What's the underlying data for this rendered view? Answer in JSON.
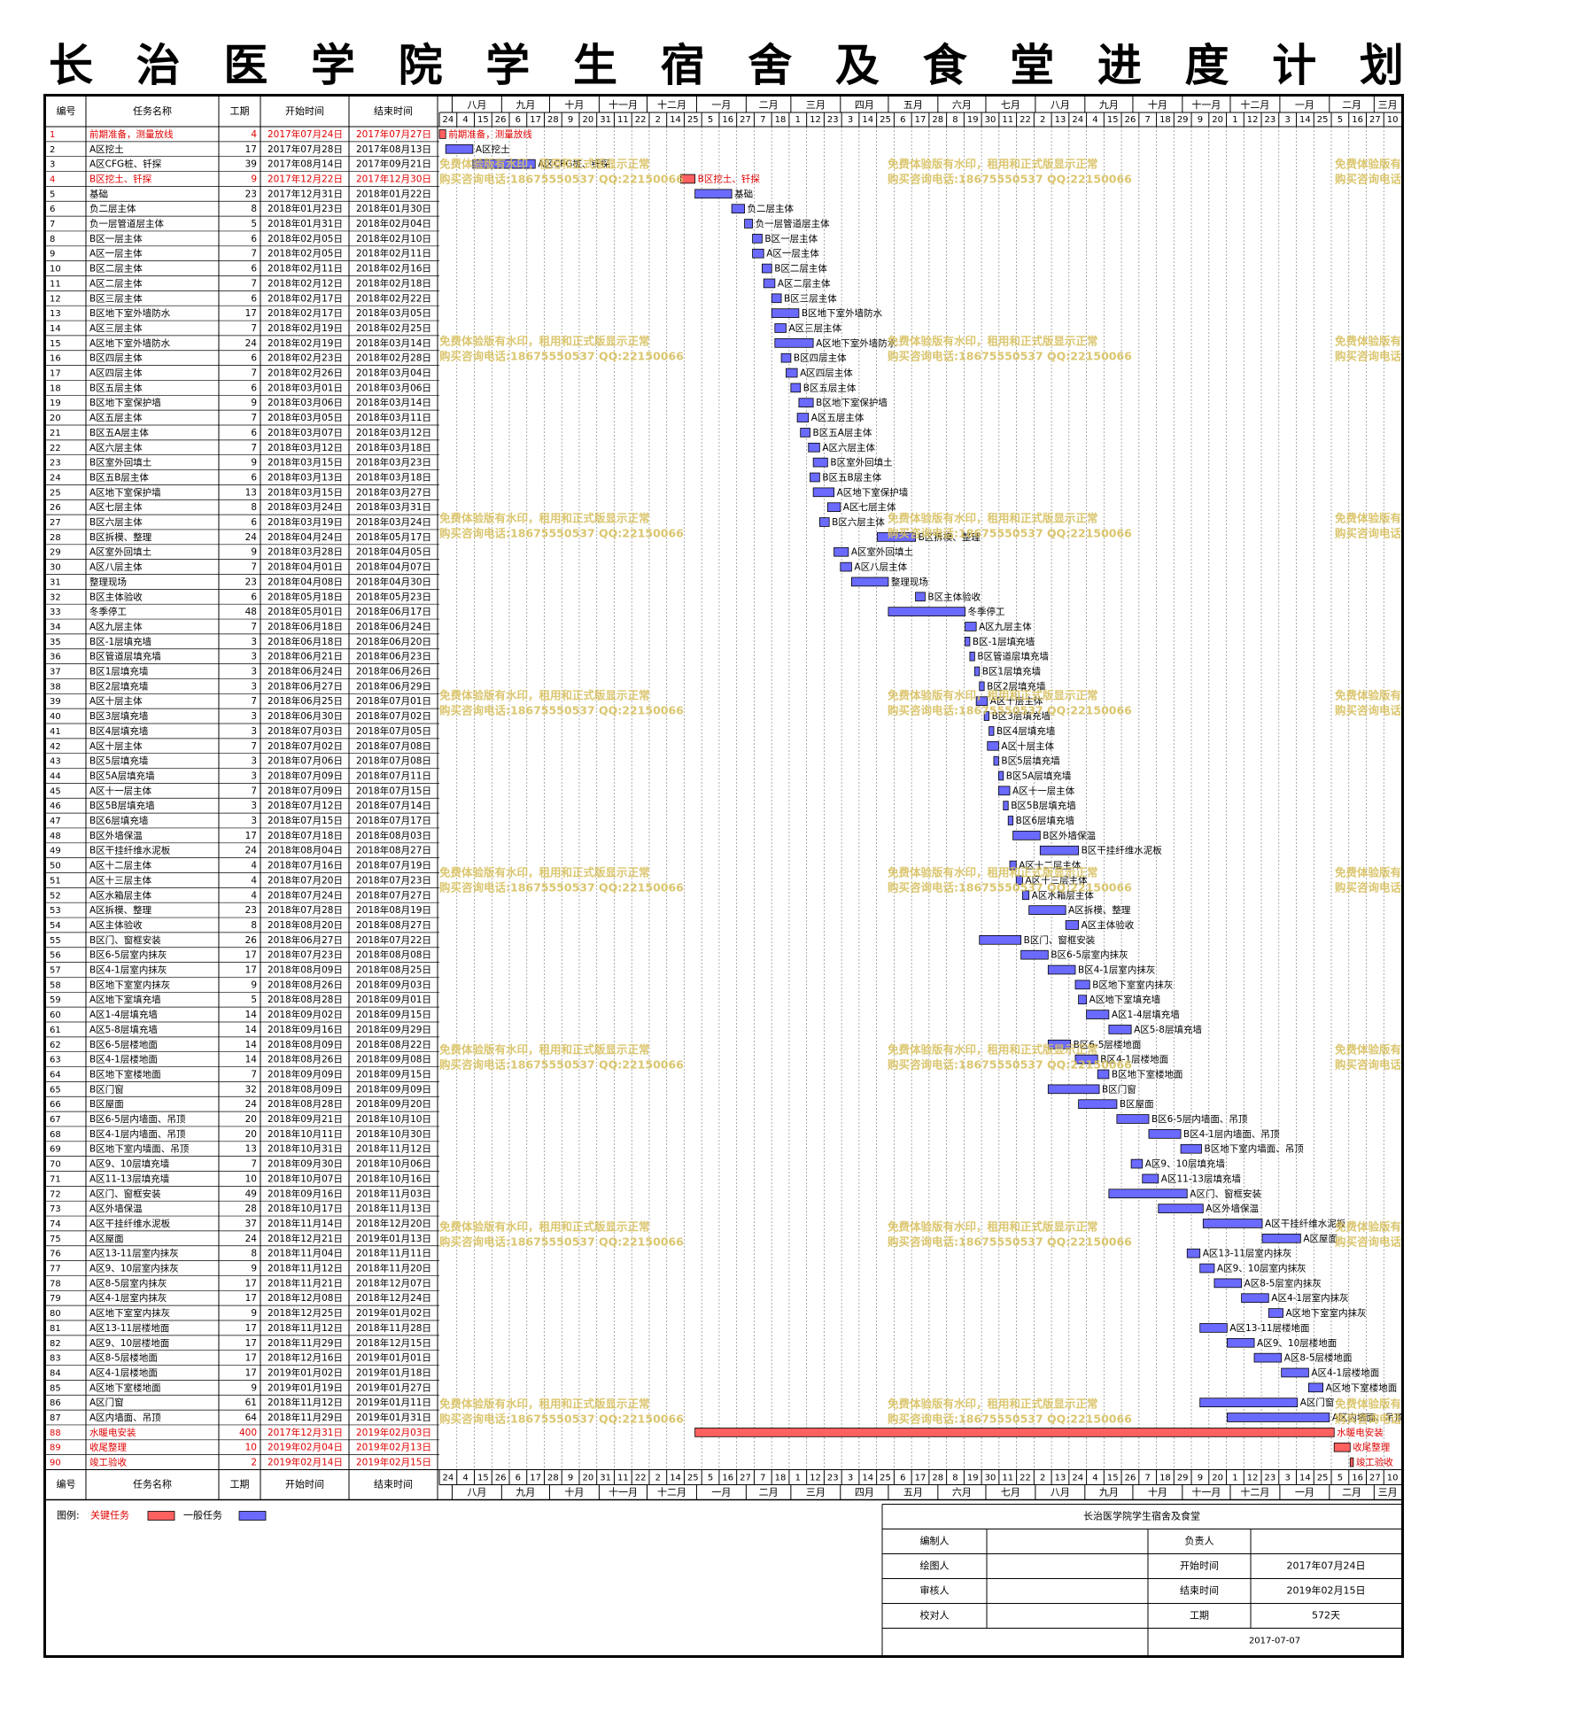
{
  "title": "长治医学院学生宿舍及食堂进度计划",
  "colors": {
    "critical": "#ff6060",
    "critical_text": "#e00000",
    "normal": "#6a6aff",
    "normal_text": "#000000",
    "watermark": "#d8c060"
  },
  "headers": {
    "id": "编号",
    "name": "任务名称",
    "duration": "工期",
    "start": "开始时间",
    "end": "结束时间"
  },
  "legend": {
    "label": "图例:",
    "critical": "关键任务",
    "normal": "一般任务"
  },
  "watermark": {
    "line1": "免费体验版有水印，租用和正式版显示正常",
    "line2": "购买咨询电话:18675550537 QQ:22150066"
  },
  "info": {
    "project": "长治医学院学生宿舍及食堂",
    "rows": [
      [
        "编制人",
        "",
        "负责人",
        ""
      ],
      [
        "绘图人",
        "",
        "开始时间",
        "2017年07月24日"
      ],
      [
        "审核人",
        "",
        "结束时间",
        "2019年02月15日"
      ],
      [
        "校对人",
        "",
        "工期",
        "572天"
      ]
    ],
    "date": "2017-07-07"
  },
  "chart_data": {
    "type": "gantt",
    "timeline": {
      "months": [
        {
          "label": "八月",
          "start": "2017-08-01"
        },
        {
          "label": "九月",
          "start": "2017-09-01"
        },
        {
          "label": "十月",
          "start": "2017-10-01"
        },
        {
          "label": "十一月",
          "start": "2017-11-01"
        },
        {
          "label": "十二月",
          "start": "2017-12-01"
        },
        {
          "label": "一月",
          "start": "2018-01-01"
        },
        {
          "label": "二月",
          "start": "2018-02-01"
        },
        {
          "label": "三月",
          "start": "2018-03-01"
        },
        {
          "label": "四月",
          "start": "2018-04-01"
        },
        {
          "label": "五月",
          "start": "2018-05-01"
        },
        {
          "label": "六月",
          "start": "2018-06-01"
        },
        {
          "label": "七月",
          "start": "2018-07-01"
        },
        {
          "label": "八月",
          "start": "2018-08-01"
        },
        {
          "label": "九月",
          "start": "2018-09-01"
        },
        {
          "label": "十月",
          "start": "2018-10-01"
        },
        {
          "label": "十一月",
          "start": "2018-11-01"
        },
        {
          "label": "十二月",
          "start": "2018-12-01"
        },
        {
          "label": "一月",
          "start": "2019-01-01"
        },
        {
          "label": "二月",
          "start": "2019-02-01"
        },
        {
          "label": "三月",
          "start": "2019-03-01"
        }
      ],
      "ticks": [
        "24",
        "4",
        "15",
        "26",
        "6",
        "17",
        "28",
        "9",
        "20",
        "31",
        "11",
        "22",
        "2",
        "14",
        "25",
        "5",
        "16",
        "27",
        "7",
        "18",
        "1",
        "12",
        "23",
        "3",
        "14",
        "25",
        "6",
        "17",
        "28",
        "8",
        "19",
        "30",
        "11",
        "22",
        "2",
        "13",
        "24",
        "4",
        "15",
        "26",
        "7",
        "18",
        "29",
        "9",
        "20",
        "1",
        "12",
        "23",
        "3",
        "14",
        "25",
        "5",
        "16",
        "27",
        "10"
      ],
      "range": [
        "2017-07-24",
        "2019-03-18"
      ]
    },
    "tasks": [
      {
        "id": "1",
        "name": "前期准备，测量放线",
        "dur": "4",
        "start": "2017年07月24日",
        "end": "2017年07月27日",
        "critical": true
      },
      {
        "id": "2",
        "name": "A区挖土",
        "dur": "17",
        "start": "2017年07月28日",
        "end": "2017年08月13日",
        "critical": false
      },
      {
        "id": "3",
        "name": "A区CFG桩、钎探",
        "dur": "39",
        "start": "2017年08月14日",
        "end": "2017年09月21日",
        "critical": false
      },
      {
        "id": "4",
        "name": "B区挖土、钎探",
        "dur": "9",
        "start": "2017年12月22日",
        "end": "2017年12月30日",
        "critical": true
      },
      {
        "id": "5",
        "name": "基础",
        "dur": "23",
        "start": "2017年12月31日",
        "end": "2018年01月22日",
        "critical": false
      },
      {
        "id": "6",
        "name": "负二层主体",
        "dur": "8",
        "start": "2018年01月23日",
        "end": "2018年01月30日",
        "critical": false
      },
      {
        "id": "7",
        "name": "负一层管道层主体",
        "dur": "5",
        "start": "2018年01月31日",
        "end": "2018年02月04日",
        "critical": false
      },
      {
        "id": "8",
        "name": "B区一层主体",
        "dur": "6",
        "start": "2018年02月05日",
        "end": "2018年02月10日",
        "critical": false
      },
      {
        "id": "9",
        "name": "A区一层主体",
        "dur": "7",
        "start": "2018年02月05日",
        "end": "2018年02月11日",
        "critical": false
      },
      {
        "id": "10",
        "name": "B区二层主体",
        "dur": "6",
        "start": "2018年02月11日",
        "end": "2018年02月16日",
        "critical": false
      },
      {
        "id": "11",
        "name": "A区二层主体",
        "dur": "7",
        "start": "2018年02月12日",
        "end": "2018年02月18日",
        "critical": false
      },
      {
        "id": "12",
        "name": "B区三层主体",
        "dur": "6",
        "start": "2018年02月17日",
        "end": "2018年02月22日",
        "critical": false
      },
      {
        "id": "13",
        "name": "B区地下室外墙防水",
        "dur": "17",
        "start": "2018年02月17日",
        "end": "2018年03月05日",
        "critical": false
      },
      {
        "id": "14",
        "name": "A区三层主体",
        "dur": "7",
        "start": "2018年02月19日",
        "end": "2018年02月25日",
        "critical": false
      },
      {
        "id": "15",
        "name": "A区地下室外墙防水",
        "dur": "24",
        "start": "2018年02月19日",
        "end": "2018年03月14日",
        "critical": false
      },
      {
        "id": "16",
        "name": "B区四层主体",
        "dur": "6",
        "start": "2018年02月23日",
        "end": "2018年02月28日",
        "critical": false
      },
      {
        "id": "17",
        "name": "A区四层主体",
        "dur": "7",
        "start": "2018年02月26日",
        "end": "2018年03月04日",
        "critical": false
      },
      {
        "id": "18",
        "name": "B区五层主体",
        "dur": "6",
        "start": "2018年03月01日",
        "end": "2018年03月06日",
        "critical": false
      },
      {
        "id": "19",
        "name": "B区地下室保护墙",
        "dur": "9",
        "start": "2018年03月06日",
        "end": "2018年03月14日",
        "critical": false
      },
      {
        "id": "20",
        "name": "A区五层主体",
        "dur": "7",
        "start": "2018年03月05日",
        "end": "2018年03月11日",
        "critical": false
      },
      {
        "id": "21",
        "name": "B区五A层主体",
        "dur": "6",
        "start": "2018年03月07日",
        "end": "2018年03月12日",
        "critical": false
      },
      {
        "id": "22",
        "name": "A区六层主体",
        "dur": "7",
        "start": "2018年03月12日",
        "end": "2018年03月18日",
        "critical": false
      },
      {
        "id": "23",
        "name": "B区室外回填土",
        "dur": "9",
        "start": "2018年03月15日",
        "end": "2018年03月23日",
        "critical": false
      },
      {
        "id": "24",
        "name": "B区五B层主体",
        "dur": "6",
        "start": "2018年03月13日",
        "end": "2018年03月18日",
        "critical": false
      },
      {
        "id": "25",
        "name": "A区地下室保护墙",
        "dur": "13",
        "start": "2018年03月15日",
        "end": "2018年03月27日",
        "critical": false
      },
      {
        "id": "26",
        "name": "A区七层主体",
        "dur": "8",
        "start": "2018年03月24日",
        "end": "2018年03月31日",
        "critical": false
      },
      {
        "id": "27",
        "name": "B区六层主体",
        "dur": "6",
        "start": "2018年03月19日",
        "end": "2018年03月24日",
        "critical": false
      },
      {
        "id": "28",
        "name": "B区拆模、整理",
        "dur": "24",
        "start": "2018年04月24日",
        "end": "2018年05月17日",
        "critical": false
      },
      {
        "id": "29",
        "name": "A区室外回填土",
        "dur": "9",
        "start": "2018年03月28日",
        "end": "2018年04月05日",
        "critical": false
      },
      {
        "id": "30",
        "name": "A区八层主体",
        "dur": "7",
        "start": "2018年04月01日",
        "end": "2018年04月07日",
        "critical": false
      },
      {
        "id": "31",
        "name": "整理现场",
        "dur": "23",
        "start": "2018年04月08日",
        "end": "2018年04月30日",
        "critical": false
      },
      {
        "id": "32",
        "name": "B区主体验收",
        "dur": "6",
        "start": "2018年05月18日",
        "end": "2018年05月23日",
        "critical": false
      },
      {
        "id": "33",
        "name": "冬季停工",
        "dur": "48",
        "start": "2018年05月01日",
        "end": "2018年06月17日",
        "critical": false
      },
      {
        "id": "34",
        "name": "A区九层主体",
        "dur": "7",
        "start": "2018年06月18日",
        "end": "2018年06月24日",
        "critical": false
      },
      {
        "id": "35",
        "name": "B区-1层填充墙",
        "dur": "3",
        "start": "2018年06月18日",
        "end": "2018年06月20日",
        "critical": false
      },
      {
        "id": "36",
        "name": "B区管道层填充墙",
        "dur": "3",
        "start": "2018年06月21日",
        "end": "2018年06月23日",
        "critical": false
      },
      {
        "id": "37",
        "name": "B区1层填充墙",
        "dur": "3",
        "start": "2018年06月24日",
        "end": "2018年06月26日",
        "critical": false
      },
      {
        "id": "38",
        "name": "B区2层填充墙",
        "dur": "3",
        "start": "2018年06月27日",
        "end": "2018年06月29日",
        "critical": false
      },
      {
        "id": "39",
        "name": "A区十层主体",
        "dur": "7",
        "start": "2018年06月25日",
        "end": "2018年07月01日",
        "critical": false
      },
      {
        "id": "40",
        "name": "B区3层填充墙",
        "dur": "3",
        "start": "2018年06月30日",
        "end": "2018年07月02日",
        "critical": false
      },
      {
        "id": "41",
        "name": "B区4层填充墙",
        "dur": "3",
        "start": "2018年07月03日",
        "end": "2018年07月05日",
        "critical": false
      },
      {
        "id": "42",
        "name": "A区十层主体",
        "dur": "7",
        "start": "2018年07月02日",
        "end": "2018年07月08日",
        "critical": false
      },
      {
        "id": "43",
        "name": "B区5层填充墙",
        "dur": "3",
        "start": "2018年07月06日",
        "end": "2018年07月08日",
        "critical": false
      },
      {
        "id": "44",
        "name": "B区5A层填充墙",
        "dur": "3",
        "start": "2018年07月09日",
        "end": "2018年07月11日",
        "critical": false
      },
      {
        "id": "45",
        "name": "A区十一层主体",
        "dur": "7",
        "start": "2018年07月09日",
        "end": "2018年07月15日",
        "critical": false
      },
      {
        "id": "46",
        "name": "B区5B层填充墙",
        "dur": "3",
        "start": "2018年07月12日",
        "end": "2018年07月14日",
        "critical": false
      },
      {
        "id": "47",
        "name": "B区6层填充墙",
        "dur": "3",
        "start": "2018年07月15日",
        "end": "2018年07月17日",
        "critical": false
      },
      {
        "id": "48",
        "name": "B区外墙保温",
        "dur": "17",
        "start": "2018年07月18日",
        "end": "2018年08月03日",
        "critical": false
      },
      {
        "id": "49",
        "name": "B区干挂纤维水泥板",
        "dur": "24",
        "start": "2018年08月04日",
        "end": "2018年08月27日",
        "critical": false
      },
      {
        "id": "50",
        "name": "A区十二层主体",
        "dur": "4",
        "start": "2018年07月16日",
        "end": "2018年07月19日",
        "critical": false
      },
      {
        "id": "51",
        "name": "A区十三层主体",
        "dur": "4",
        "start": "2018年07月20日",
        "end": "2018年07月23日",
        "critical": false
      },
      {
        "id": "52",
        "name": "A区水箱层主体",
        "dur": "4",
        "start": "2018年07月24日",
        "end": "2018年07月27日",
        "critical": false
      },
      {
        "id": "53",
        "name": "A区拆模、整理",
        "dur": "23",
        "start": "2018年07月28日",
        "end": "2018年08月19日",
        "critical": false
      },
      {
        "id": "54",
        "name": "A区主体验收",
        "dur": "8",
        "start": "2018年08月20日",
        "end": "2018年08月27日",
        "critical": false
      },
      {
        "id": "55",
        "name": "B区门、窗框安装",
        "dur": "26",
        "start": "2018年06月27日",
        "end": "2018年07月22日",
        "critical": false
      },
      {
        "id": "56",
        "name": "B区6-5层室内抹灰",
        "dur": "17",
        "start": "2018年07月23日",
        "end": "2018年08月08日",
        "critical": false
      },
      {
        "id": "57",
        "name": "B区4-1层室内抹灰",
        "dur": "17",
        "start": "2018年08月09日",
        "end": "2018年08月25日",
        "critical": false
      },
      {
        "id": "58",
        "name": "B区地下室室内抹灰",
        "dur": "9",
        "start": "2018年08月26日",
        "end": "2018年09月03日",
        "critical": false
      },
      {
        "id": "59",
        "name": "A区地下室填充墙",
        "dur": "5",
        "start": "2018年08月28日",
        "end": "2018年09月01日",
        "critical": false
      },
      {
        "id": "60",
        "name": "A区1-4层填充墙",
        "dur": "14",
        "start": "2018年09月02日",
        "end": "2018年09月15日",
        "critical": false
      },
      {
        "id": "61",
        "name": "A区5-8层填充墙",
        "dur": "14",
        "start": "2018年09月16日",
        "end": "2018年09月29日",
        "critical": false
      },
      {
        "id": "62",
        "name": "B区6-5层楼地面",
        "dur": "14",
        "start": "2018年08月09日",
        "end": "2018年08月22日",
        "critical": false
      },
      {
        "id": "63",
        "name": "B区4-1层楼地面",
        "dur": "14",
        "start": "2018年08月26日",
        "end": "2018年09月08日",
        "critical": false
      },
      {
        "id": "64",
        "name": "B区地下室楼地面",
        "dur": "7",
        "start": "2018年09月09日",
        "end": "2018年09月15日",
        "critical": false
      },
      {
        "id": "65",
        "name": "B区门窗",
        "dur": "32",
        "start": "2018年08月09日",
        "end": "2018年09月09日",
        "critical": false
      },
      {
        "id": "66",
        "name": "B区屋面",
        "dur": "24",
        "start": "2018年08月28日",
        "end": "2018年09月20日",
        "critical": false
      },
      {
        "id": "67",
        "name": "B区6-5层内墙面、吊顶",
        "dur": "20",
        "start": "2018年09月21日",
        "end": "2018年10月10日",
        "critical": false
      },
      {
        "id": "68",
        "name": "B区4-1层内墙面、吊顶",
        "dur": "20",
        "start": "2018年10月11日",
        "end": "2018年10月30日",
        "critical": false
      },
      {
        "id": "69",
        "name": "B区地下室内墙面、吊顶",
        "dur": "13",
        "start": "2018年10月31日",
        "end": "2018年11月12日",
        "critical": false
      },
      {
        "id": "70",
        "name": "A区9、10层填充墙",
        "dur": "7",
        "start": "2018年09月30日",
        "end": "2018年10月06日",
        "critical": false
      },
      {
        "id": "71",
        "name": "A区11-13层填充墙",
        "dur": "10",
        "start": "2018年10月07日",
        "end": "2018年10月16日",
        "critical": false
      },
      {
        "id": "72",
        "name": "A区门、窗框安装",
        "dur": "49",
        "start": "2018年09月16日",
        "end": "2018年11月03日",
        "critical": false
      },
      {
        "id": "73",
        "name": "A区外墙保温",
        "dur": "28",
        "start": "2018年10月17日",
        "end": "2018年11月13日",
        "critical": false
      },
      {
        "id": "74",
        "name": "A区干挂纤维水泥板",
        "dur": "37",
        "start": "2018年11月14日",
        "end": "2018年12月20日",
        "critical": false
      },
      {
        "id": "75",
        "name": "A区屋面",
        "dur": "24",
        "start": "2018年12月21日",
        "end": "2019年01月13日",
        "critical": false
      },
      {
        "id": "76",
        "name": "A区13-11层室内抹灰",
        "dur": "8",
        "start": "2018年11月04日",
        "end": "2018年11月11日",
        "critical": false
      },
      {
        "id": "77",
        "name": "A区9、10层室内抹灰",
        "dur": "9",
        "start": "2018年11月12日",
        "end": "2018年11月20日",
        "critical": false
      },
      {
        "id": "78",
        "name": "A区8-5层室内抹灰",
        "dur": "17",
        "start": "2018年11月21日",
        "end": "2018年12月07日",
        "critical": false
      },
      {
        "id": "79",
        "name": "A区4-1层室内抹灰",
        "dur": "17",
        "start": "2018年12月08日",
        "end": "2018年12月24日",
        "critical": false
      },
      {
        "id": "80",
        "name": "A区地下室室内抹灰",
        "dur": "9",
        "start": "2018年12月25日",
        "end": "2019年01月02日",
        "critical": false
      },
      {
        "id": "81",
        "name": "A区13-11层楼地面",
        "dur": "17",
        "start": "2018年11月12日",
        "end": "2018年11月28日",
        "critical": false
      },
      {
        "id": "82",
        "name": "A区9、10层楼地面",
        "dur": "17",
        "start": "2018年11月29日",
        "end": "2018年12月15日",
        "critical": false
      },
      {
        "id": "83",
        "name": "A区8-5层楼地面",
        "dur": "17",
        "start": "2018年12月16日",
        "end": "2019年01月01日",
        "critical": false
      },
      {
        "id": "84",
        "name": "A区4-1层楼地面",
        "dur": "17",
        "start": "2019年01月02日",
        "end": "2019年01月18日",
        "critical": false
      },
      {
        "id": "85",
        "name": "A区地下室楼地面",
        "dur": "9",
        "start": "2019年01月19日",
        "end": "2019年01月27日",
        "critical": false
      },
      {
        "id": "86",
        "name": "A区门窗",
        "dur": "61",
        "start": "2018年11月12日",
        "end": "2019年01月11日",
        "critical": false
      },
      {
        "id": "87",
        "name": "A区内墙面、吊顶",
        "dur": "64",
        "start": "2018年11月29日",
        "end": "2019年01月31日",
        "critical": false
      },
      {
        "id": "88",
        "name": "水暖电安装",
        "dur": "400",
        "start": "2017年12月31日",
        "end": "2019年02月03日",
        "critical": true
      },
      {
        "id": "89",
        "name": "收尾整理",
        "dur": "10",
        "start": "2019年02月04日",
        "end": "2019年02月13日",
        "critical": true
      },
      {
        "id": "90",
        "name": "竣工验收",
        "dur": "2",
        "start": "2019年02月14日",
        "end": "2019年02月15日",
        "critical": true
      }
    ]
  }
}
